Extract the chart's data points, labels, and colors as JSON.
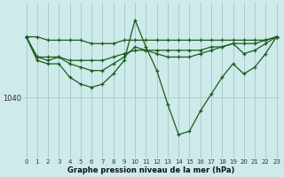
{
  "background_color": "#ceeaea",
  "grid_color": "#aacccc",
  "line_color": "#1a5c1a",
  "xlabel": "Graphe pression niveau de la mer (hPa)",
  "x_ticks": [
    0,
    1,
    2,
    3,
    4,
    5,
    6,
    7,
    8,
    9,
    10,
    11,
    12,
    13,
    14,
    15,
    16,
    17,
    18,
    19,
    20,
    21,
    22,
    23
  ],
  "series": [
    [
      1058,
      1058,
      1057,
      1057,
      1057,
      1057,
      1056,
      1056,
      1056,
      1057,
      1057,
      1057,
      1057,
      1057,
      1057,
      1057,
      1057,
      1057,
      1057,
      1057,
      1057,
      1057,
      1057,
      1058
    ],
    [
      1058,
      1052,
      1052,
      1052,
      1051,
      1051,
      1051,
      1051,
      1052,
      1053,
      1054,
      1054,
      1054,
      1054,
      1054,
      1054,
      1054,
      1055,
      1055,
      1056,
      1056,
      1056,
      1057,
      1058
    ],
    [
      1058,
      1052,
      1051,
      1052,
      1050,
      1049,
      1048,
      1048,
      1050,
      1052,
      1055,
      1054,
      1053,
      1052,
      1052,
      1052,
      1053,
      1054,
      1055,
      1056,
      1053,
      1054,
      1056,
      1058
    ],
    [
      1058,
      1051,
      1050,
      1050,
      1046,
      1044,
      1043,
      1044,
      1047,
      1051,
      1063,
      1055,
      1048,
      1038,
      1029,
      1030,
      1036,
      1041,
      1046,
      1050,
      1047,
      1049,
      1053,
      1058
    ]
  ],
  "ylim": [
    1022,
    1068
  ],
  "ytick_val": 1040
}
